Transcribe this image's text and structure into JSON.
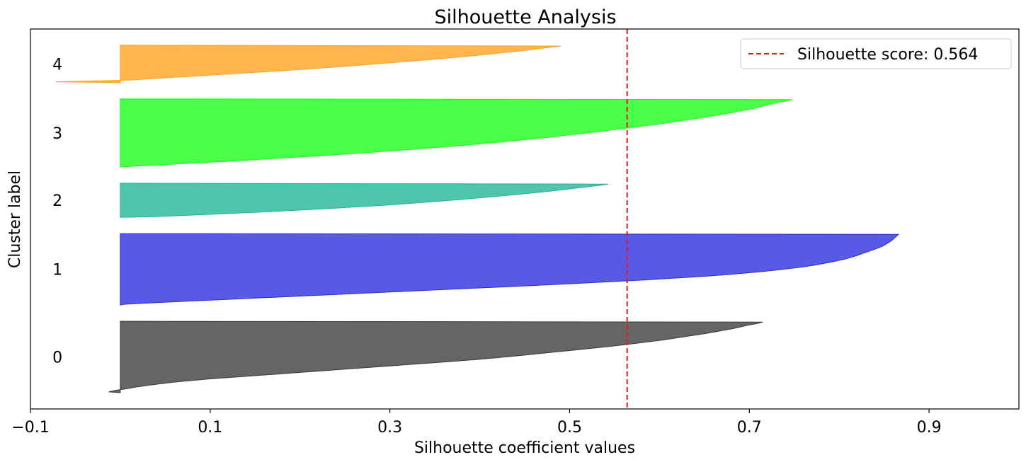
{
  "chart_data": {
    "type": "area",
    "title": "Silhouette Analysis",
    "xlabel": "Silhouette coefficient values",
    "ylabel": "Cluster label",
    "xlim": [
      -0.1,
      1.0
    ],
    "xticks": [
      -0.1,
      0.1,
      0.3,
      0.5,
      0.7,
      0.9
    ],
    "xtick_labels": [
      "−0.1",
      "0.1",
      "0.3",
      "0.5",
      "0.7",
      "0.9"
    ],
    "grid": false,
    "legend_position": "top-right",
    "silhouette_score": {
      "value": 0.564,
      "label": "Silhouette score: 0.564",
      "color": "#e41a1c",
      "style": "dashed"
    },
    "clusters": [
      {
        "label": "0",
        "color": "#3a3a3a",
        "size": 44,
        "values": [
          0.715,
          0.708,
          0.698,
          0.69,
          0.682,
          0.672,
          0.662,
          0.652,
          0.64,
          0.628,
          0.616,
          0.604,
          0.59,
          0.575,
          0.56,
          0.545,
          0.528,
          0.51,
          0.492,
          0.474,
          0.456,
          0.438,
          0.418,
          0.398,
          0.375,
          0.35,
          0.325,
          0.3,
          0.275,
          0.25,
          0.225,
          0.2,
          0.175,
          0.15,
          0.125,
          0.1,
          0.08,
          0.06,
          0.045,
          0.03,
          0.018,
          0.008,
          -0.005,
          -0.013
        ]
      },
      {
        "label": "1",
        "color": "#2a2ae0",
        "size": 44,
        "values": [
          0.866,
          0.864,
          0.862,
          0.86,
          0.858,
          0.855,
          0.852,
          0.849,
          0.845,
          0.84,
          0.835,
          0.83,
          0.825,
          0.82,
          0.814,
          0.808,
          0.8,
          0.792,
          0.782,
          0.772,
          0.76,
          0.745,
          0.73,
          0.712,
          0.692,
          0.67,
          0.645,
          0.615,
          0.585,
          0.55,
          0.515,
          0.48,
          0.44,
          0.4,
          0.36,
          0.32,
          0.28,
          0.24,
          0.2,
          0.16,
          0.12,
          0.08,
          0.04,
          0.005
        ]
      },
      {
        "label": "2",
        "color": "#1db595",
        "size": 21,
        "values": [
          0.543,
          0.53,
          0.515,
          0.5,
          0.485,
          0.468,
          0.45,
          0.43,
          0.41,
          0.39,
          0.368,
          0.345,
          0.32,
          0.295,
          0.265,
          0.235,
          0.2,
          0.165,
          0.125,
          0.085,
          0.04
        ]
      },
      {
        "label": "3",
        "color": "#16ff16",
        "size": 42,
        "values": [
          0.748,
          0.74,
          0.73,
          0.722,
          0.715,
          0.708,
          0.7,
          0.69,
          0.68,
          0.67,
          0.66,
          0.648,
          0.636,
          0.624,
          0.612,
          0.6,
          0.586,
          0.572,
          0.558,
          0.543,
          0.528,
          0.512,
          0.496,
          0.48,
          0.462,
          0.444,
          0.426,
          0.405,
          0.385,
          0.362,
          0.34,
          0.315,
          0.29,
          0.265,
          0.238,
          0.21,
          0.18,
          0.15,
          0.12,
          0.085,
          0.05,
          0.015
        ]
      },
      {
        "label": "4",
        "color": "#ffa11e",
        "size": 23,
        "values": [
          0.49,
          0.475,
          0.46,
          0.445,
          0.428,
          0.41,
          0.392,
          0.372,
          0.352,
          0.33,
          0.308,
          0.285,
          0.262,
          0.238,
          0.212,
          0.186,
          0.158,
          0.128,
          0.098,
          0.068,
          0.038,
          0.01,
          -0.072
        ]
      }
    ]
  }
}
